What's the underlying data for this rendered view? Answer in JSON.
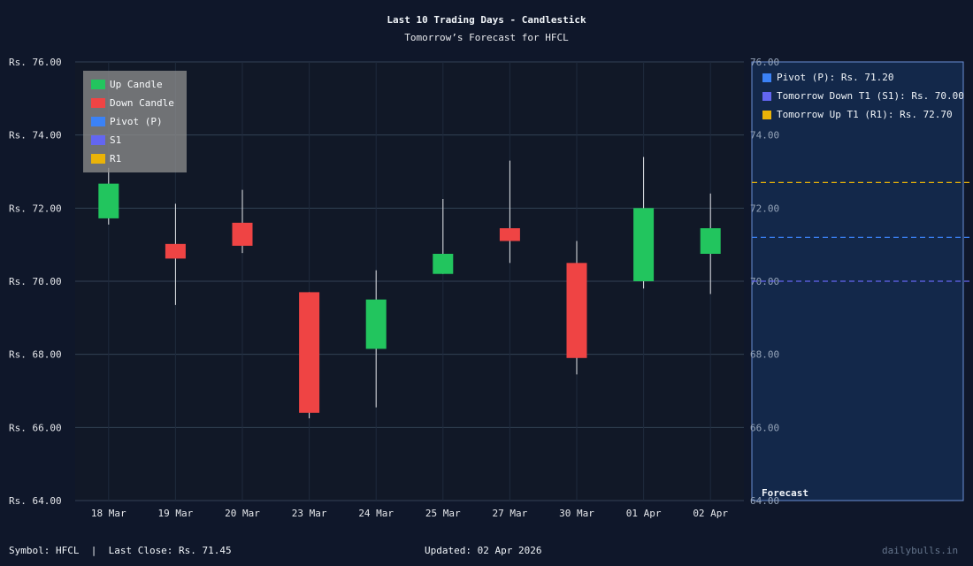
{
  "header": {
    "title": "Last 10 Trading Days - Candlestick",
    "subtitle": "Tomorrow’s Forecast for HFCL"
  },
  "legend": {
    "items": [
      {
        "label": "Up Candle",
        "color": "#22c55e"
      },
      {
        "label": "Down Candle",
        "color": "#ef4444"
      },
      {
        "label": "Pivot (P)",
        "color": "#3b82f6"
      },
      {
        "label": "S1",
        "color": "#6366f1"
      },
      {
        "label": "R1",
        "color": "#eab308"
      }
    ]
  },
  "forecast_panel": {
    "label": "Forecast",
    "items": [
      {
        "label": "Pivot (P): Rs. 71.20",
        "color": "#3b82f6",
        "value": 71.2
      },
      {
        "label": "Tomorrow Down T1 (S1): Rs. 70.00",
        "color": "#6366f1",
        "value": 70.0
      },
      {
        "label": "Tomorrow Up T1 (R1): Rs. 72.70",
        "color": "#eab308",
        "value": 72.7
      }
    ]
  },
  "footer": {
    "symbol": "Symbol: HFCL  |  Last Close: Rs. 71.45",
    "updated": "Updated: 02 Apr 2026",
    "brand": "dailybulls.in"
  },
  "colors": {
    "background": "#0f172a",
    "plot_bg": "#111827",
    "forecast_bg": "#13284a",
    "up": "#22c55e",
    "down": "#ef4444",
    "grid": "#334155"
  },
  "chart_data": {
    "type": "candlestick",
    "title": "Last 10 Trading Days - Candlestick",
    "subtitle": "Tomorrow’s Forecast for HFCL",
    "xlabel": "",
    "ylabel": "",
    "ylim": [
      64,
      76
    ],
    "yticks": [
      "Rs. 64.00",
      "Rs. 66.00",
      "Rs. 68.00",
      "Rs. 70.00",
      "Rs. 72.00",
      "Rs. 74.00",
      "Rs. 76.00"
    ],
    "right_yticks": [
      "64.00",
      "66.00",
      "68.00",
      "70.00",
      "72.00",
      "74.00",
      "76.00"
    ],
    "grid": true,
    "legend_position": "top-left",
    "categories": [
      "18 Mar",
      "19 Mar",
      "20 Mar",
      "23 Mar",
      "24 Mar",
      "25 Mar",
      "27 Mar",
      "30 Mar",
      "01 Apr",
      "02 Apr"
    ],
    "series": [
      {
        "name": "open",
        "values": [
          71.72,
          71.02,
          71.6,
          69.7,
          68.15,
          70.2,
          71.45,
          70.5,
          70.0,
          70.75
        ]
      },
      {
        "name": "high",
        "values": [
          73.1,
          72.12,
          72.5,
          69.7,
          70.3,
          72.25,
          73.3,
          71.1,
          73.4,
          72.4
        ]
      },
      {
        "name": "low",
        "values": [
          71.55,
          69.35,
          70.77,
          66.25,
          66.55,
          70.2,
          70.5,
          67.45,
          69.8,
          69.65
        ]
      },
      {
        "name": "close",
        "values": [
          72.67,
          70.62,
          70.97,
          66.4,
          69.5,
          70.75,
          71.1,
          67.9,
          72.0,
          71.45
        ]
      }
    ],
    "forecast_lines": [
      {
        "name": "Pivot (P)",
        "value": 71.2,
        "color": "#3b82f6"
      },
      {
        "name": "S1",
        "value": 70.0,
        "color": "#6366f1"
      },
      {
        "name": "R1",
        "value": 72.7,
        "color": "#eab308"
      }
    ]
  }
}
